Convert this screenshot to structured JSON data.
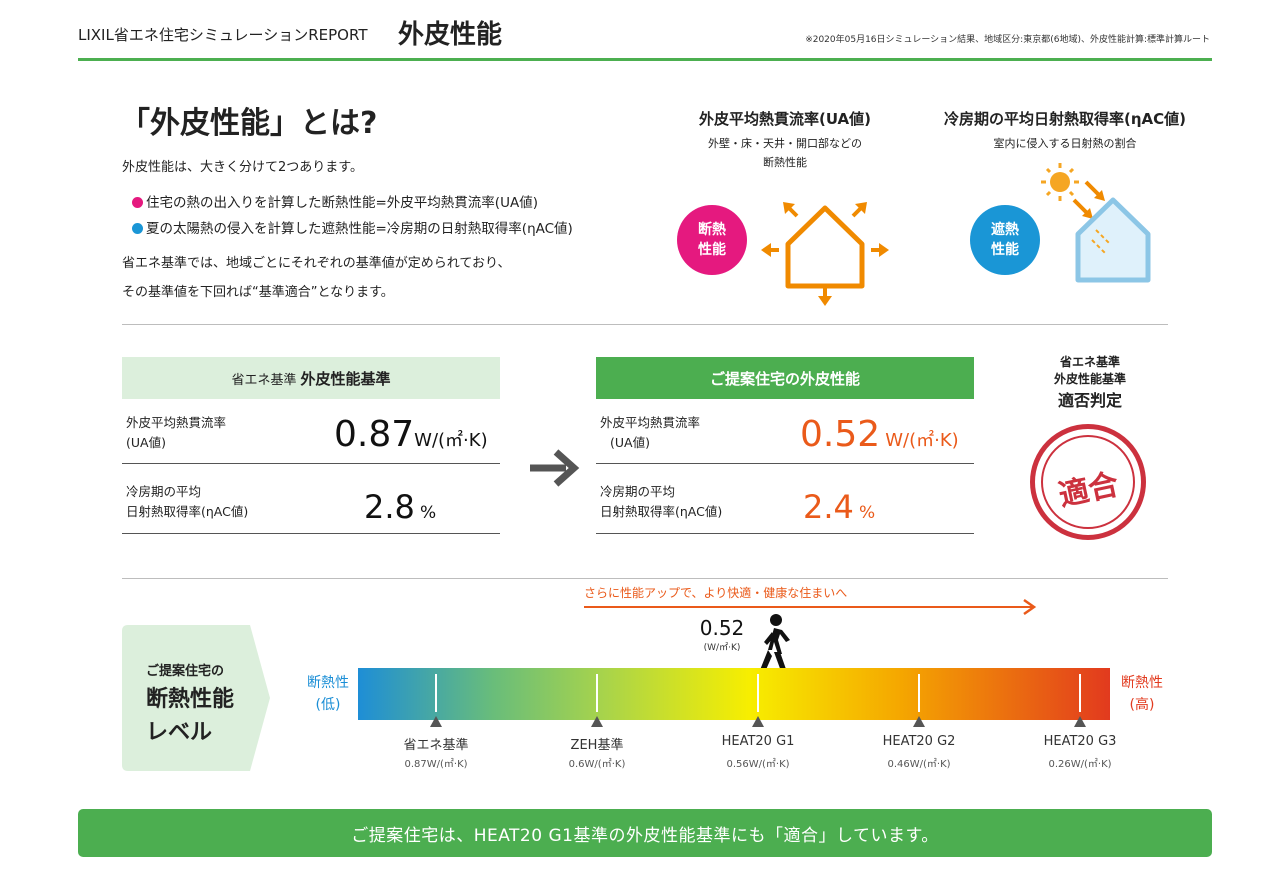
{
  "header": {
    "report_name": "LIXIL省エネ住宅シミュレーションREPORT",
    "title": "外皮性能",
    "note": "※2020年05月16日シミュレーション結果、地域区分:東京都(6地域)、外皮性能計算:標準計算ルート"
  },
  "intro": {
    "title": "「外皮性能」とは?",
    "lead": "外皮性能は、大きく分けて2つあります。",
    "bullets": [
      {
        "text": "住宅の熱の出入りを計算した断熱性能=外皮平均熱貫流率(UA値)",
        "color": "#e5197f"
      },
      {
        "text": "夏の太陽熱の侵入を計算した遮熱性能=冷房期の日射熱取得率(ηAC値)",
        "color": "#1a96d6"
      }
    ],
    "p1": "省エネ基準では、地域ごとにそれぞれの基準値が定められており、",
    "p2": "その基準値を下回れば“基準適合”となります。"
  },
  "concepts": {
    "ua": {
      "title": "外皮平均熱貫流率(UA値)",
      "sub1": "外壁・床・天井・開口部などの",
      "sub2": "断熱性能",
      "badge1": "断熱",
      "badge2": "性能",
      "badge_color": "#e5197f"
    },
    "eta": {
      "title": "冷房期の平均日射熱取得率(ηAC値)",
      "sub": "室内に侵入する日射熱の割合",
      "badge1": "遮熱",
      "badge2": "性能",
      "badge_color": "#1a96d6"
    }
  },
  "standard": {
    "head_small": "省エネ基準",
    "head_big": "外皮性能基準",
    "ua_label1": "外皮平均熱貫流率",
    "ua_label2": "(UA値)",
    "ua_value": "0.87",
    "ua_unit": "W/(㎡·K)",
    "eta_label1": "冷房期の平均",
    "eta_label2": "日射熱取得率(ηAC値)",
    "eta_value": "2.8",
    "eta_unit": "%"
  },
  "proposal": {
    "head": "ご提案住宅の外皮性能",
    "ua_label1": "外皮平均熱貫流率",
    "ua_label2": "(UA値)",
    "ua_value": "0.52",
    "ua_unit": "W/(㎡·K)",
    "eta_label1": "冷房期の平均",
    "eta_label2": "日射熱取得率(ηAC値)",
    "eta_value": "2.4",
    "eta_unit": "%"
  },
  "judgement": {
    "line1": "省エネ基準",
    "line2": "外皮性能基準",
    "line3": "適否判定",
    "stamp": "適合",
    "stamp_color": "#c8202e"
  },
  "level": {
    "box_line1": "ご提案住宅の",
    "box_line2": "断熱性能",
    "box_line3": "レベル",
    "low_label1": "断熱性",
    "low_label2": "(低)",
    "high_label1": "断熱性",
    "high_label2": "(高)",
    "improve_text": "さらに性能アップで、より快適・健康な住まいへ",
    "current_value": "0.52",
    "current_unit": "(W/㎡·K)",
    "marks": [
      {
        "name": "省エネ基準",
        "value": "0.87W/(㎡·K)"
      },
      {
        "name": "ZEH基準",
        "value": "0.6W/(㎡·K)"
      },
      {
        "name": "HEAT20 G1",
        "value": "0.56W/(㎡·K)"
      },
      {
        "name": "HEAT20 G2",
        "value": "0.46W/(㎡·K)"
      },
      {
        "name": "HEAT20 G3",
        "value": "0.26W/(㎡·K)"
      }
    ]
  },
  "footer": {
    "message": "ご提案住宅は、HEAT20 G1基準の外皮性能基準にも「適合」しています。"
  }
}
